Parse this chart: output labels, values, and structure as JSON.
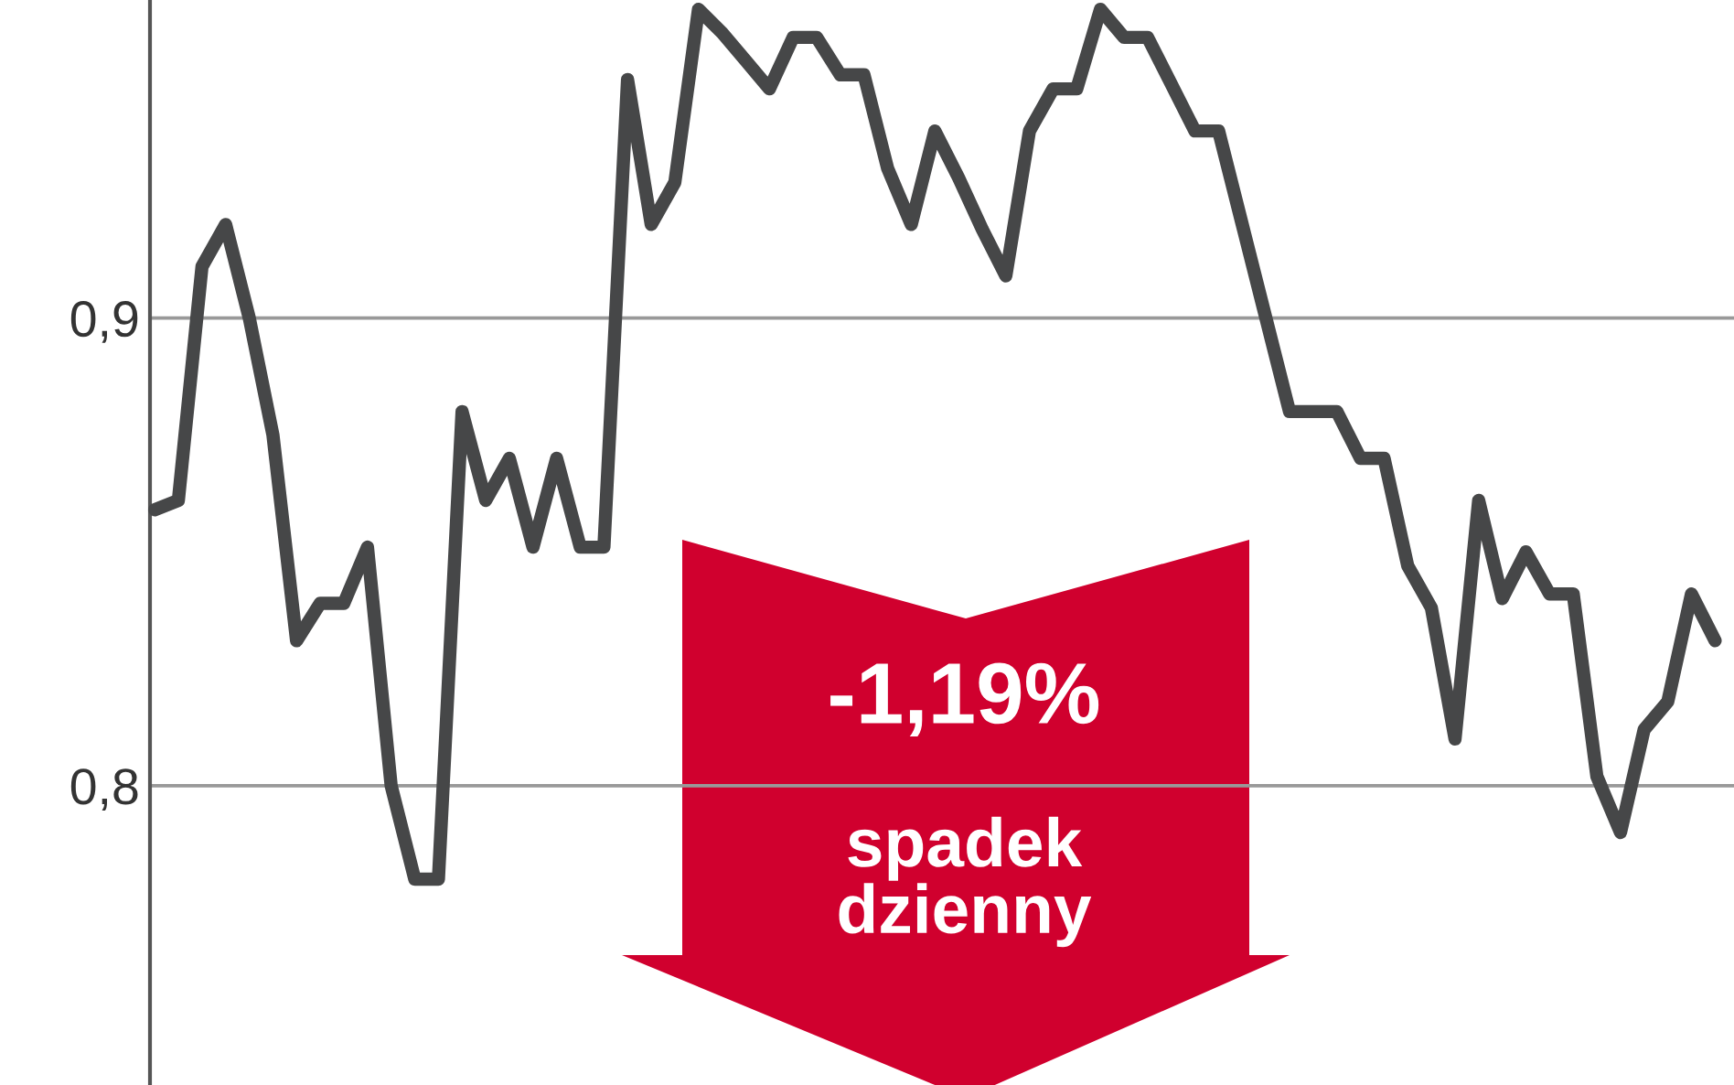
{
  "chart_data": {
    "type": "line",
    "categories": [
      null,
      null,
      null,
      null,
      null,
      null,
      null,
      null,
      null,
      null,
      null,
      null,
      null,
      null,
      null,
      null,
      null,
      null,
      null,
      null,
      null,
      null,
      null,
      null,
      null,
      null,
      null,
      null,
      null,
      null,
      null,
      null,
      null,
      null,
      null,
      null,
      null,
      null,
      null,
      null,
      null,
      null,
      null,
      null,
      null,
      null,
      null,
      null,
      null,
      null,
      null,
      null,
      null,
      null,
      null,
      null,
      null,
      null,
      null,
      null,
      null,
      null,
      null,
      null,
      null,
      null,
      null
    ],
    "series": [
      {
        "color": "#464748",
        "values": [
          0.859,
          0.861,
          0.911,
          0.92,
          0.9,
          0.875,
          0.831,
          0.839,
          0.839,
          0.851,
          0.8,
          0.78,
          0.78,
          0.88,
          0.861,
          0.87,
          0.851,
          0.87,
          0.851,
          0.851,
          0.951,
          0.92,
          0.929,
          0.966,
          0.961,
          0.955,
          0.949,
          0.96,
          0.96,
          0.952,
          0.952,
          0.932,
          0.92,
          0.94,
          0.93,
          0.919,
          0.909,
          0.94,
          0.949,
          0.949,
          0.966,
          0.96,
          0.96,
          0.95,
          0.94,
          0.94,
          0.92,
          0.9,
          0.88,
          0.88,
          0.88,
          0.87,
          0.87,
          0.847,
          0.838,
          0.81,
          0.861,
          0.84,
          0.85,
          0.841,
          0.841,
          0.802,
          0.79,
          0.812,
          0.818,
          0.841,
          0.831
        ]
      }
    ],
    "ylim": [
      0.736,
      0.968
    ],
    "yticks": [
      {
        "value": 0.8,
        "label": "0,8"
      },
      {
        "value": 0.9,
        "label": "0,9"
      }
    ],
    "grid": "y",
    "tick_labels": "y",
    "annotations": [
      "-1,19%",
      "spadek\ndzienny"
    ]
  }
}
